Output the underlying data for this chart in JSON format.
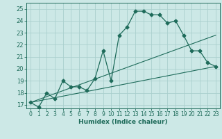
{
  "xlabel": "Humidex (Indice chaleur)",
  "xlim": [
    -0.5,
    23.5
  ],
  "ylim": [
    16.7,
    25.5
  ],
  "yticks": [
    17,
    18,
    19,
    20,
    21,
    22,
    23,
    24,
    25
  ],
  "xticks": [
    0,
    1,
    2,
    3,
    4,
    5,
    6,
    7,
    8,
    9,
    10,
    11,
    12,
    13,
    14,
    15,
    16,
    17,
    18,
    19,
    20,
    21,
    22,
    23
  ],
  "bg_color": "#cce8e6",
  "grid_color": "#aacfcd",
  "line_color": "#1e6b5a",
  "main_line": {
    "x": [
      0,
      1,
      2,
      3,
      4,
      5,
      6,
      7,
      8,
      9,
      10,
      11,
      12,
      13,
      14,
      15,
      16,
      17,
      18,
      19,
      20,
      21,
      22,
      23
    ],
    "y": [
      17.2,
      16.8,
      18.0,
      17.5,
      19.0,
      18.5,
      18.5,
      18.2,
      19.2,
      21.5,
      19.0,
      22.8,
      23.5,
      24.8,
      24.8,
      24.5,
      24.5,
      23.8,
      24.0,
      22.8,
      21.5,
      21.5,
      20.5,
      20.2
    ]
  },
  "line2": {
    "x": [
      0,
      23
    ],
    "y": [
      17.2,
      22.8
    ]
  },
  "line3": {
    "x": [
      0,
      23
    ],
    "y": [
      17.2,
      20.2
    ]
  }
}
